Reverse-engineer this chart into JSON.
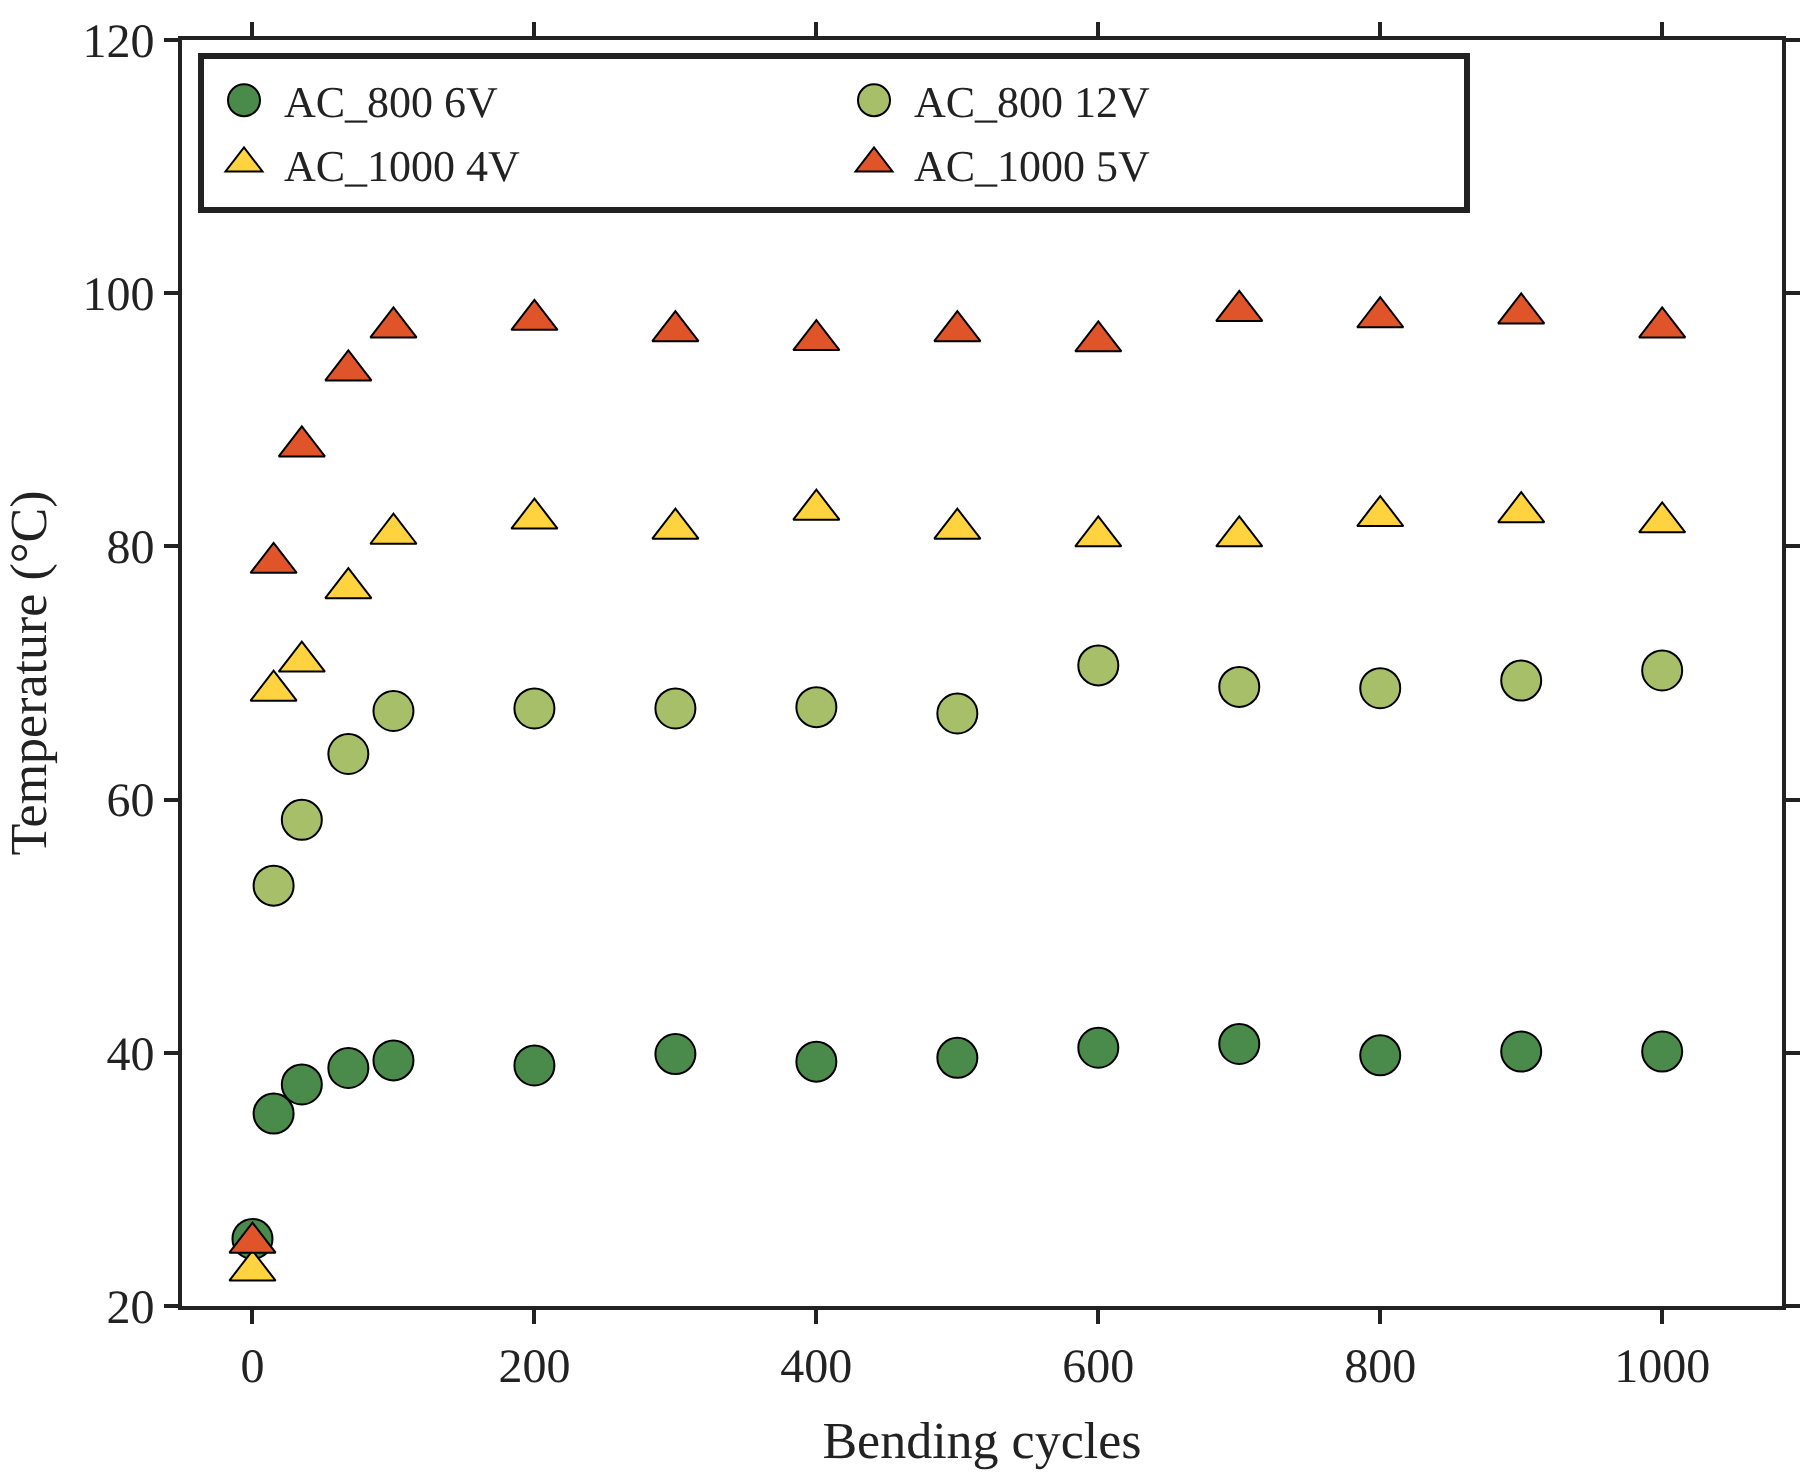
{
  "chart_data": {
    "type": "scatter",
    "xlabel": "Bending cycles",
    "ylabel": "Temperature (°C)",
    "x": [
      0,
      15,
      35,
      68,
      100,
      200,
      300,
      400,
      500,
      600,
      700,
      800,
      900,
      1000
    ],
    "xlim": [
      -50,
      1085
    ],
    "xticks": [
      0,
      200,
      400,
      600,
      800,
      1000
    ],
    "ylim": [
      20,
      120
    ],
    "yticks": [
      20,
      40,
      60,
      80,
      100,
      120
    ],
    "legend": "top left",
    "series": [
      {
        "name": "AC_800 6V",
        "color": "#4a8a4a",
        "marker": "circle",
        "values": [
          25.3,
          35.2,
          37.5,
          38.8,
          39.4,
          39.0,
          39.9,
          39.3,
          39.6,
          40.4,
          40.7,
          39.8,
          40.1,
          40.1
        ]
      },
      {
        "name": "AC_800 12V",
        "color": "#a8bf6a",
        "marker": "circle",
        "values": [
          null,
          53.2,
          58.4,
          63.6,
          67.0,
          67.2,
          67.2,
          67.3,
          66.8,
          70.6,
          68.9,
          68.8,
          69.4,
          70.2
        ]
      },
      {
        "name": "AC_1000 4V",
        "color": "#ffd23f",
        "marker": "triangle",
        "values": [
          22.8,
          68.6,
          70.9,
          76.7,
          81.0,
          82.2,
          81.4,
          82.9,
          81.4,
          80.8,
          80.8,
          82.4,
          82.7,
          81.9
        ]
      },
      {
        "name": "AC_1000 5V",
        "color": "#e0542a",
        "marker": "triangle",
        "values": [
          25.0,
          78.7,
          87.9,
          93.9,
          97.3,
          97.9,
          97.0,
          96.3,
          97.0,
          96.2,
          98.6,
          98.1,
          98.4,
          97.3
        ]
      }
    ]
  }
}
